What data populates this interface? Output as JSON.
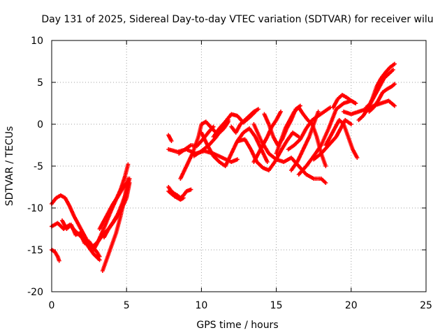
{
  "chart_data": {
    "type": "scatter",
    "title": "Day 131 of 2025, Sidereal Day-to-day VTEC variation (SDTVAR) for receiver wilu",
    "xlabel": "GPS time / hours",
    "ylabel": "SDTVAR / TECUs",
    "xlim": [
      0,
      25
    ],
    "ylim": [
      -20,
      10
    ],
    "xticks": [
      0,
      5,
      10,
      15,
      20,
      25
    ],
    "yticks": [
      -20,
      -15,
      -10,
      -5,
      0,
      5,
      10
    ],
    "grid": true,
    "marker": "+",
    "color": "#ff0000",
    "series": [
      {
        "name": "s1",
        "x": [
          0.0,
          0.3,
          0.6,
          0.9,
          1.2,
          1.5,
          1.8,
          2.1,
          2.4,
          2.7,
          3.0,
          3.2
        ],
        "y": [
          -9.5,
          -8.8,
          -8.5,
          -8.8,
          -9.8,
          -11.0,
          -12.0,
          -13.0,
          -14.0,
          -14.6,
          -15.2,
          -15.8
        ]
      },
      {
        "name": "s2",
        "x": [
          0.0,
          0.4,
          0.8,
          1.2,
          1.6,
          2.0,
          2.4,
          2.8,
          3.2
        ],
        "y": [
          -12.2,
          -11.8,
          -12.5,
          -12.0,
          -12.8,
          -13.5,
          -14.5,
          -15.5,
          -16.2
        ]
      },
      {
        "name": "s3",
        "x": [
          0.7,
          1.0,
          1.3,
          1.6,
          1.9,
          2.2,
          2.5,
          2.8,
          3.0
        ],
        "y": [
          -11.5,
          -12.5,
          -12.0,
          -13.2,
          -13.0,
          -14.2,
          -14.0,
          -14.8,
          -14.3
        ]
      },
      {
        "name": "s4",
        "x": [
          0.0,
          0.2,
          0.4,
          0.5
        ],
        "y": [
          -15.0,
          -15.2,
          -15.8,
          -16.3
        ]
      },
      {
        "name": "s5",
        "x": [
          2.8,
          3.1,
          3.4,
          3.7,
          4.0,
          4.3,
          4.6,
          4.9,
          5.1
        ],
        "y": [
          -15.0,
          -14.0,
          -12.8,
          -11.5,
          -10.2,
          -9.0,
          -7.8,
          -6.2,
          -4.8
        ]
      },
      {
        "name": "s6",
        "x": [
          3.4,
          3.7,
          4.0,
          4.3,
          4.6,
          4.9,
          5.1
        ],
        "y": [
          -17.5,
          -16.0,
          -14.5,
          -13.0,
          -11.0,
          -8.5,
          -6.5
        ]
      },
      {
        "name": "s7",
        "x": [
          2.6,
          3.0,
          3.4,
          3.8,
          4.2,
          4.6,
          5.0,
          5.2
        ],
        "y": [
          -14.8,
          -14.2,
          -13.3,
          -12.5,
          -11.5,
          -10.4,
          -8.8,
          -7.0
        ]
      },
      {
        "name": "s8",
        "x": [
          3.5,
          3.8,
          4.1,
          4.4,
          4.7,
          5.0,
          5.2
        ],
        "y": [
          -13.5,
          -12.5,
          -11.7,
          -10.8,
          -9.5,
          -8.0,
          -6.5
        ]
      },
      {
        "name": "s9",
        "x": [
          3.2,
          3.5,
          3.8,
          4.1,
          4.4,
          4.7,
          5.0
        ],
        "y": [
          -12.5,
          -11.5,
          -10.5,
          -9.5,
          -8.7,
          -7.8,
          -7.0
        ]
      },
      {
        "name": "s10",
        "x": [
          7.8,
          8.0,
          8.2,
          8.4,
          8.6,
          8.8,
          9.0,
          9.3
        ],
        "y": [
          -7.5,
          -8.0,
          -8.3,
          -8.5,
          -8.8,
          -8.5,
          -8.0,
          -7.8
        ]
      },
      {
        "name": "s11",
        "x": [
          7.8,
          8.0,
          8.2,
          8.4,
          8.6,
          8.8
        ],
        "y": [
          -8.0,
          -8.3,
          -8.6,
          -8.8,
          -9.0,
          -8.8
        ]
      },
      {
        "name": "s12",
        "x": [
          7.8,
          8.0
        ],
        "y": [
          -1.3,
          -2.0
        ]
      },
      {
        "name": "s13",
        "x": [
          7.8,
          8.4,
          9.0,
          9.6,
          10.2,
          10.8,
          11.4,
          12.0,
          12.4
        ],
        "y": [
          -3.0,
          -3.3,
          -3.0,
          -3.5,
          -3.2,
          -3.5,
          -4.0,
          -4.5,
          -4.2
        ]
      },
      {
        "name": "s14",
        "x": [
          8.6,
          9.0,
          9.4,
          9.8,
          10.0,
          10.3,
          10.7,
          11.1,
          11.5,
          11.8
        ],
        "y": [
          -6.5,
          -5.0,
          -3.5,
          -1.5,
          0.0,
          0.3,
          -0.5,
          -1.2,
          -0.5,
          0.3
        ]
      },
      {
        "name": "s15",
        "x": [
          8.5,
          8.9,
          9.3,
          9.7,
          10.1,
          10.5,
          10.8
        ],
        "y": [
          -3.5,
          -3.0,
          -2.5,
          -2.6,
          -1.8,
          -0.9,
          -0.3
        ]
      },
      {
        "name": "s16",
        "x": [
          9.5,
          10.0,
          10.5,
          11.0,
          11.4,
          11.8
        ],
        "y": [
          -3.8,
          -3.2,
          -2.5,
          -1.5,
          -0.3,
          0.5
        ]
      },
      {
        "name": "s17",
        "x": [
          10.0,
          10.4,
          10.8,
          11.2,
          11.6,
          12.0,
          12.4,
          12.8,
          13.2,
          13.6,
          14.0,
          14.4
        ],
        "y": [
          -1.0,
          -2.5,
          -3.8,
          -4.5,
          -5.0,
          -3.5,
          -2.0,
          -1.0,
          -0.5,
          -1.5,
          -3.0,
          -4.5
        ]
      },
      {
        "name": "s18",
        "x": [
          10.8,
          11.2,
          11.6,
          12.0,
          12.4,
          12.8,
          13.2,
          13.6
        ],
        "y": [
          -1.5,
          -0.5,
          0.3,
          1.2,
          1.0,
          0.2,
          0.8,
          1.5
        ]
      },
      {
        "name": "s19",
        "x": [
          12.5,
          12.9,
          13.3,
          13.7,
          14.1,
          14.5,
          14.9,
          15.3,
          15.7,
          16.1,
          16.5
        ],
        "y": [
          -2.0,
          -1.8,
          -3.0,
          -4.5,
          -5.2,
          -5.5,
          -4.5,
          -3.2,
          -2.0,
          -1.0,
          -1.5
        ]
      },
      {
        "name": "s20",
        "x": [
          12.0,
          12.3,
          12.6,
          12.9,
          13.2,
          13.5,
          13.8
        ],
        "y": [
          -0.3,
          -1.0,
          0.0,
          0.5,
          1.0,
          1.5,
          1.8
        ]
      },
      {
        "name": "s21",
        "x": [
          13.5,
          13.8,
          14.1,
          14.4,
          14.7,
          15.0,
          15.3
        ],
        "y": [
          -4.5,
          -3.5,
          -2.5,
          -1.5,
          -0.3,
          0.5,
          1.5
        ]
      },
      {
        "name": "s22",
        "x": [
          13.5,
          14.0,
          14.5,
          15.0,
          15.5,
          16.0,
          16.5,
          17.0,
          17.5,
          18.0,
          18.3
        ],
        "y": [
          0.0,
          -2.0,
          -3.5,
          -4.2,
          -4.5,
          -4.0,
          -5.0,
          -6.0,
          -6.5,
          -6.5,
          -7.0
        ]
      },
      {
        "name": "s23",
        "x": [
          14.2,
          14.5,
          14.8,
          15.1,
          15.4,
          15.7,
          16.0,
          16.3,
          16.6
        ],
        "y": [
          1.2,
          0.0,
          -1.5,
          -2.5,
          -1.8,
          -0.5,
          0.5,
          1.8,
          2.2
        ]
      },
      {
        "name": "s24",
        "x": [
          15.0,
          15.3,
          15.6,
          15.9,
          16.2,
          16.5,
          16.8,
          17.1,
          17.4,
          17.7,
          18.0,
          18.3
        ],
        "y": [
          -3.5,
          -2.0,
          -0.5,
          0.5,
          1.5,
          2.0,
          1.2,
          0.5,
          0.0,
          -1.5,
          -3.5,
          -5.0
        ]
      },
      {
        "name": "s25",
        "x": [
          15.8,
          16.2,
          16.6,
          17.0,
          17.4,
          17.8,
          18.2,
          18.6
        ],
        "y": [
          -3.0,
          -2.5,
          -1.8,
          -0.5,
          0.5,
          1.0,
          1.5,
          2.0
        ]
      },
      {
        "name": "s26",
        "x": [
          16.0,
          16.4,
          16.8,
          17.2,
          17.5,
          17.8
        ],
        "y": [
          -5.5,
          -4.5,
          -3.0,
          -1.5,
          0.0,
          1.5
        ]
      },
      {
        "name": "s27",
        "x": [
          16.5,
          17.0,
          17.5,
          18.0,
          18.5,
          19.0,
          19.5,
          20.0,
          20.3
        ],
        "y": [
          -6.0,
          -5.0,
          -3.8,
          -2.5,
          -0.5,
          1.8,
          2.5,
          2.8,
          2.5
        ]
      },
      {
        "name": "s28",
        "x": [
          17.5,
          18.0,
          18.5,
          19.0,
          19.3,
          19.6,
          20.0
        ],
        "y": [
          -4.2,
          -3.5,
          -2.5,
          -1.5,
          -0.5,
          0.5,
          0.0
        ]
      },
      {
        "name": "s29",
        "x": [
          18.3,
          18.6,
          18.9,
          19.2,
          19.5,
          19.8,
          20.1,
          20.4
        ],
        "y": [
          -2.5,
          -1.5,
          -0.5,
          0.5,
          0.0,
          -1.5,
          -3.0,
          -4.0
        ]
      },
      {
        "name": "s30",
        "x": [
          18.8,
          19.1,
          19.4,
          19.7,
          20.0,
          20.3
        ],
        "y": [
          2.0,
          3.0,
          3.5,
          3.2,
          2.8,
          2.5
        ]
      },
      {
        "name": "s31",
        "x": [
          19.5,
          20.0,
          20.5,
          21.0,
          21.5,
          22.0,
          22.5,
          22.9
        ],
        "y": [
          1.5,
          1.2,
          1.5,
          1.8,
          2.2,
          2.5,
          2.8,
          2.2
        ]
      },
      {
        "name": "s32",
        "x": [
          20.5,
          20.8,
          21.1,
          21.4,
          21.7,
          22.0,
          22.3,
          22.6,
          22.9
        ],
        "y": [
          0.5,
          1.0,
          1.8,
          3.0,
          4.5,
          5.5,
          6.2,
          6.8,
          7.2
        ]
      },
      {
        "name": "s33",
        "x": [
          21.0,
          21.3,
          21.6,
          21.9,
          22.2,
          22.5,
          22.8
        ],
        "y": [
          2.0,
          2.5,
          3.5,
          4.5,
          5.5,
          6.0,
          6.5
        ]
      },
      {
        "name": "s34",
        "x": [
          21.2,
          21.5,
          21.8,
          22.1,
          22.4,
          22.7,
          22.9
        ],
        "y": [
          1.5,
          2.0,
          2.8,
          3.8,
          4.2,
          4.5,
          4.8
        ]
      }
    ]
  }
}
